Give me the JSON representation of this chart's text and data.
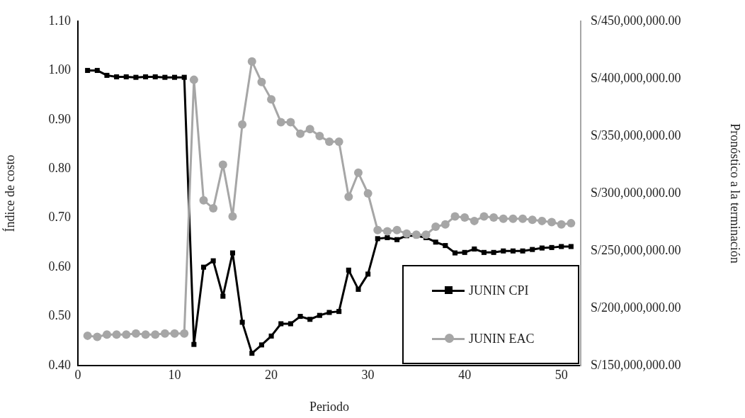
{
  "chart_data": {
    "type": "line",
    "xlabel": "Periodo",
    "ylabel": "Índice de costo",
    "y2label": "Pronóstico a la terminación",
    "x": [
      1,
      2,
      3,
      4,
      5,
      6,
      7,
      8,
      9,
      10,
      11,
      12,
      13,
      14,
      15,
      16,
      17,
      18,
      19,
      20,
      21,
      22,
      23,
      24,
      25,
      26,
      27,
      28,
      29,
      30,
      31,
      32,
      33,
      34,
      35,
      36,
      37,
      38,
      39,
      40,
      41,
      42,
      43,
      44,
      45,
      46,
      47,
      48,
      49,
      50,
      51
    ],
    "series": [
      {
        "name": "JUNIN CPI",
        "color": "#000000",
        "marker": "square",
        "values": [
          1.0,
          1.0,
          0.99,
          0.987,
          0.987,
          0.986,
          0.987,
          0.987,
          0.986,
          0.986,
          0.986,
          0.443,
          0.6,
          0.613,
          0.541,
          0.629,
          0.488,
          0.425,
          0.442,
          0.46,
          0.485,
          0.485,
          0.5,
          0.494,
          0.502,
          0.508,
          0.51,
          0.594,
          0.555,
          0.586,
          0.658,
          0.66,
          0.656,
          0.664,
          0.664,
          0.66,
          0.651,
          0.644,
          0.629,
          0.63,
          0.637,
          0.63,
          0.63,
          0.633,
          0.633,
          0.633,
          0.636,
          0.639,
          0.64,
          0.642,
          0.642
        ]
      },
      {
        "name": "JUNIN EAC",
        "color": "#a6a6a6",
        "marker": "circle",
        "axis": "y2",
        "values": [
          176000000,
          175000000,
          177000000,
          177000000,
          177000000,
          178000000,
          177000000,
          177000000,
          178000000,
          178000000,
          178000000,
          399000000,
          294000000,
          287000000,
          325000000,
          280000000,
          360000000,
          415000000,
          397000000,
          382000000,
          362000000,
          362000000,
          352000000,
          356000000,
          350000000,
          345000000,
          345000000,
          297000000,
          318000000,
          300000000,
          268000000,
          267000000,
          268000000,
          265000000,
          264000000,
          264000000,
          271000000,
          273000000,
          280000000,
          279000000,
          276000000,
          280000000,
          279000000,
          278000000,
          278000000,
          278000000,
          277000000,
          276000000,
          275000000,
          273000000,
          274000000
        ]
      }
    ],
    "xlim": [
      0,
      52
    ],
    "xticks": [
      0,
      10,
      20,
      30,
      40,
      50
    ],
    "ylim": [
      0.4,
      1.1
    ],
    "yticks": [
      {
        "value": 0.4,
        "label": "0.40"
      },
      {
        "value": 0.5,
        "label": "0.50"
      },
      {
        "value": 0.6,
        "label": "0.60"
      },
      {
        "value": 0.7,
        "label": "0.70"
      },
      {
        "value": 0.8,
        "label": "0.80"
      },
      {
        "value": 0.9,
        "label": "0.90"
      },
      {
        "value": 1.0,
        "label": "1.00"
      },
      {
        "value": 1.1,
        "label": "1.10"
      }
    ],
    "y2lim": [
      150000000,
      450000000
    ],
    "y2ticks": [
      {
        "value": 150000000,
        "label": "S/150,000,000.00"
      },
      {
        "value": 200000000,
        "label": "S/200,000,000.00"
      },
      {
        "value": 250000000,
        "label": "S/250,000,000.00"
      },
      {
        "value": 300000000,
        "label": "S/300,000,000.00"
      },
      {
        "value": 350000000,
        "label": "S/350,000,000.00"
      },
      {
        "value": 400000000,
        "label": "S/400,000,000.00"
      },
      {
        "value": 450000000,
        "label": "S/450,000,000.00"
      }
    ],
    "grid": false,
    "legend": "bottom right",
    "line_style": "solid"
  }
}
